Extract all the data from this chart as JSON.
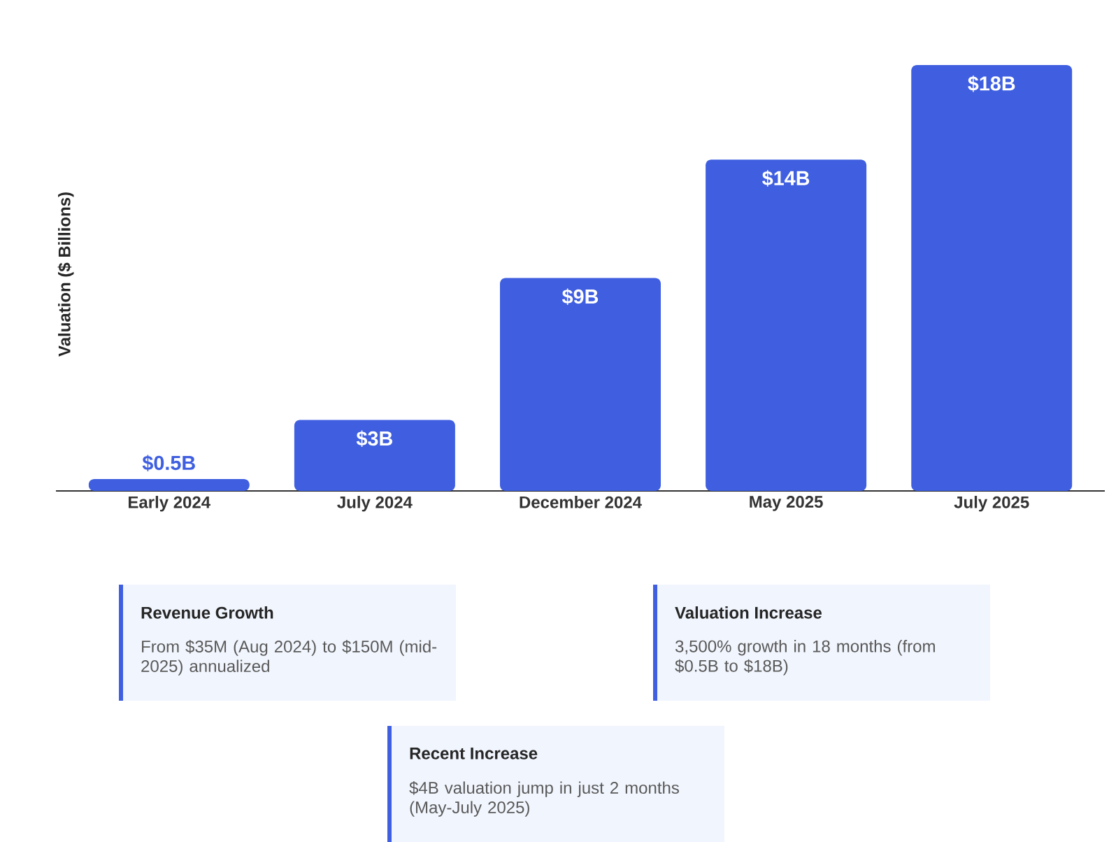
{
  "chart_data": {
    "type": "bar",
    "ylabel": "Valuation ($ Billions)",
    "categories": [
      "Early 2024",
      "July 2024",
      "December 2024",
      "May 2025",
      "July 2025"
    ],
    "values": [
      0.5,
      3,
      9,
      14,
      18
    ],
    "value_labels": [
      "$0.5B",
      "$3B",
      "$9B",
      "$14B",
      "$18B"
    ],
    "color": "#3f5fe0",
    "annotations": [
      "Revenue Growth",
      "From $35M (Aug 2024) to $150M (mid-2025) annualized",
      "Valuation Increase",
      "3,500% growth in 18 months (from $0.5B to $18B)",
      "Recent Increase",
      "$4B valuation jump in just 2 months (May-July 2025)"
    ]
  }
}
